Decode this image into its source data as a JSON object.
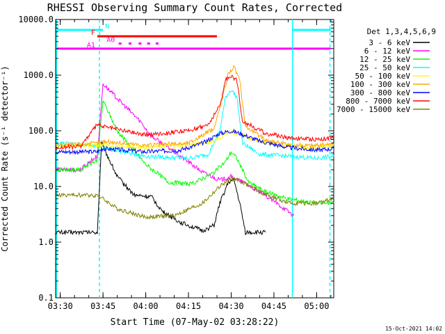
{
  "footer_date": "15-Oct-2021 14:02",
  "chart_data": {
    "type": "line",
    "title": "RHESSI Observing Summary Count Rates, Corrected",
    "xlabel": "Start Time (07-May-02 03:28:22)",
    "ylabel": "Corrected Count Rate (s⁻¹ detector⁻¹)",
    "yscale": "log",
    "xlim": [
      "03:28:22",
      "05:06:00"
    ],
    "ylim": [
      0.1,
      10000
    ],
    "x_ticks": [
      "03:30",
      "03:45",
      "04:00",
      "04:15",
      "04:30",
      "04:45",
      "05:00"
    ],
    "y_ticks": [
      "0.1",
      "1.0",
      "10.0",
      "100.0",
      "1000.0",
      "10000.0"
    ],
    "legend_title": "Det 1,3,4,5,6,9",
    "legend_position": "right",
    "grid": false,
    "series": [
      {
        "name": "3 - 6 keV",
        "color": "#000000",
        "points": [
          [
            "03:28:30",
            1.5
          ],
          [
            "03:43:00",
            1.5
          ],
          [
            "03:44:30",
            60
          ],
          [
            "03:50:00",
            15
          ],
          [
            "03:56:00",
            7
          ],
          [
            "04:02:00",
            6.5
          ],
          [
            "04:06:00",
            3.5
          ],
          [
            "04:12:00",
            2.3
          ],
          [
            "04:20:00",
            1.6
          ],
          [
            "04:24:00",
            2
          ],
          [
            "04:26:00",
            5
          ],
          [
            "04:29:00",
            12
          ],
          [
            "04:31:00",
            13
          ],
          [
            "04:33:00",
            5
          ],
          [
            "04:35:00",
            1.5
          ],
          [
            "04:42:00",
            1.5
          ]
        ]
      },
      {
        "name": "6 - 12 keV",
        "color": "#ff00ff",
        "points": [
          [
            "03:28:30",
            20
          ],
          [
            "03:37:00",
            20
          ],
          [
            "03:41:00",
            30
          ],
          [
            "03:43:00",
            35
          ],
          [
            "03:45:00",
            700
          ],
          [
            "03:52:00",
            300
          ],
          [
            "03:58:00",
            150
          ],
          [
            "04:02:00",
            80
          ],
          [
            "04:08:00",
            50
          ],
          [
            "04:14:00",
            30
          ],
          [
            "04:20:00",
            18
          ],
          [
            "04:26:00",
            13
          ],
          [
            "04:30:00",
            15
          ],
          [
            "04:34:00",
            12
          ],
          [
            "04:40:00",
            8
          ],
          [
            "04:46:00",
            5
          ],
          [
            "04:52:00",
            3
          ]
        ]
      },
      {
        "name": "12 - 25 keV",
        "color": "#00ff00",
        "points": [
          [
            "03:28:30",
            20
          ],
          [
            "03:37:00",
            20
          ],
          [
            "03:43:00",
            30
          ],
          [
            "03:45:00",
            350
          ],
          [
            "03:50:00",
            100
          ],
          [
            "03:55:00",
            50
          ],
          [
            "04:00:00",
            25
          ],
          [
            "04:08:00",
            12
          ],
          [
            "04:16:00",
            11
          ],
          [
            "04:24:00",
            18
          ],
          [
            "04:28:00",
            28
          ],
          [
            "04:30:00",
            42
          ],
          [
            "04:32:00",
            32
          ],
          [
            "04:36:00",
            12
          ],
          [
            "04:42:00",
            8
          ],
          [
            "04:50:00",
            6
          ],
          [
            "05:00:00",
            5
          ],
          [
            "05:06:00",
            5
          ]
        ]
      },
      {
        "name": "25 - 50 keV",
        "color": "#00ffff",
        "points": [
          [
            "03:28:30",
            60
          ],
          [
            "03:43:00",
            55
          ],
          [
            "03:45:00",
            50
          ],
          [
            "04:00:00",
            35
          ],
          [
            "04:15:00",
            32
          ],
          [
            "04:22:00",
            38
          ],
          [
            "04:26:00",
            100
          ],
          [
            "04:28:00",
            400
          ],
          [
            "04:30:00",
            550
          ],
          [
            "04:32:00",
            400
          ],
          [
            "04:34:00",
            60
          ],
          [
            "04:40:00",
            38
          ],
          [
            "04:50:00",
            35
          ],
          [
            "05:00:00",
            32
          ],
          [
            "05:06:00",
            35
          ]
        ]
      },
      {
        "name": "50 - 100 keV",
        "color": "#ffff00",
        "points": [
          [
            "03:28:30",
            55
          ],
          [
            "03:43:00",
            55
          ],
          [
            "03:45:00",
            55
          ],
          [
            "04:00:00",
            50
          ],
          [
            "04:15:00",
            55
          ],
          [
            "04:24:00",
            65
          ],
          [
            "04:28:00",
            90
          ],
          [
            "04:30:00",
            95
          ],
          [
            "04:32:00",
            90
          ],
          [
            "04:38:00",
            70
          ],
          [
            "04:48:00",
            55
          ],
          [
            "05:00:00",
            50
          ],
          [
            "05:06:00",
            55
          ]
        ]
      },
      {
        "name": "100 - 300 keV",
        "color": "#ffa500",
        "points": [
          [
            "03:28:30",
            55
          ],
          [
            "03:43:00",
            60
          ],
          [
            "03:45:00",
            65
          ],
          [
            "04:00:00",
            55
          ],
          [
            "04:15:00",
            60
          ],
          [
            "04:24:00",
            110
          ],
          [
            "04:27:00",
            400
          ],
          [
            "04:29:00",
            1100
          ],
          [
            "04:31:00",
            1400
          ],
          [
            "04:33:00",
            800
          ],
          [
            "04:35:00",
            120
          ],
          [
            "04:42:00",
            70
          ],
          [
            "04:50:00",
            55
          ],
          [
            "05:00:00",
            55
          ],
          [
            "05:06:00",
            58
          ]
        ]
      },
      {
        "name": "300 - 800 keV",
        "color": "#0000ff",
        "points": [
          [
            "03:28:30",
            42
          ],
          [
            "03:43:00",
            42
          ],
          [
            "03:45:00",
            48
          ],
          [
            "04:00:00",
            42
          ],
          [
            "04:12:00",
            45
          ],
          [
            "04:20:00",
            60
          ],
          [
            "04:26:00",
            90
          ],
          [
            "04:30:00",
            100
          ],
          [
            "04:33:00",
            90
          ],
          [
            "04:40:00",
            65
          ],
          [
            "04:50:00",
            50
          ],
          [
            "05:00:00",
            45
          ],
          [
            "05:06:00",
            48
          ]
        ]
      },
      {
        "name": "800 - 7000 keV",
        "color": "#ff0000",
        "points": [
          [
            "03:28:30",
            50
          ],
          [
            "03:37:00",
            52
          ],
          [
            "03:43:00",
            130
          ],
          [
            "03:45:00",
            120
          ],
          [
            "04:00:00",
            85
          ],
          [
            "04:15:00",
            100
          ],
          [
            "04:22:00",
            130
          ],
          [
            "04:26:00",
            280
          ],
          [
            "04:28:00",
            800
          ],
          [
            "04:30:00",
            1000
          ],
          [
            "04:32:00",
            800
          ],
          [
            "04:34:00",
            150
          ],
          [
            "04:42:00",
            90
          ],
          [
            "04:50:00",
            75
          ],
          [
            "05:00:00",
            70
          ],
          [
            "05:06:00",
            75
          ]
        ]
      },
      {
        "name": "7000 - 15000 keV",
        "color": "#808000",
        "points": [
          [
            "03:28:30",
            7
          ],
          [
            "03:43:00",
            7
          ],
          [
            "03:45:00",
            6
          ],
          [
            "03:50:00",
            4
          ],
          [
            "04:00:00",
            2.8
          ],
          [
            "04:10:00",
            3
          ],
          [
            "04:20:00",
            5
          ],
          [
            "04:26:00",
            10
          ],
          [
            "04:30:00",
            14
          ],
          [
            "04:34:00",
            12
          ],
          [
            "04:40:00",
            8
          ],
          [
            "04:50:00",
            5
          ],
          [
            "05:00:00",
            5
          ],
          [
            "05:06:00",
            6
          ]
        ]
      }
    ],
    "vertical_lines": [
      {
        "time": "03:28:40",
        "color": "#00ffff",
        "style": "solid"
      },
      {
        "time": "03:43:45",
        "color": "#00ffff",
        "style": "dashed"
      },
      {
        "time": "04:51:30",
        "color": "#00ffff",
        "style": "solid"
      },
      {
        "time": "05:04:40",
        "color": "#00ffff",
        "style": "dashed"
      }
    ],
    "flag_bars": [
      {
        "label": "N",
        "color": "#00ffff",
        "level": 6500,
        "segments": [
          [
            "03:28:30",
            "03:45:00"
          ],
          [
            "04:51:30",
            "05:05:00"
          ]
        ]
      },
      {
        "label": "F",
        "color": "#ff0000",
        "level": 5000,
        "segments": [
          [
            "03:43:00",
            "04:25:00"
          ]
        ]
      },
      {
        "label": "A0",
        "color": "#ff00ff",
        "level": 3700,
        "segments": [
          [
            "03:50:30",
            "03:51:30"
          ],
          [
            "03:54:00",
            "03:55:00"
          ],
          [
            "03:57:30",
            "03:58:30"
          ],
          [
            "04:00:30",
            "04:01:30"
          ],
          [
            "04:03:30",
            "04:04:30"
          ]
        ]
      },
      {
        "label": "A1",
        "color": "#ff00ff",
        "level": 3000,
        "segments": [
          [
            "03:28:30",
            "04:52:00"
          ],
          [
            "04:52:00",
            "05:05:00"
          ]
        ]
      }
    ]
  }
}
